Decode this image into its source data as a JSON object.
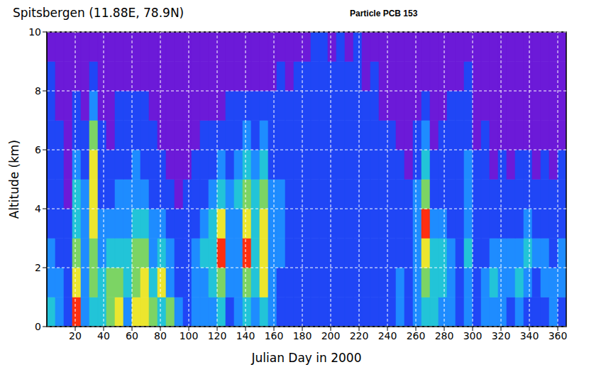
{
  "chart_data": {
    "type": "heatmap",
    "title": "Spitsbergen (11.88E, 78.9N)",
    "subtitle": "Particle PCB 153",
    "x_label": "Julian Day in 2000",
    "y_label": "Altitude (km)",
    "xlim": [
      0,
      366
    ],
    "ylim": [
      0,
      10
    ],
    "xticks": [
      20,
      40,
      60,
      80,
      100,
      120,
      140,
      160,
      180,
      200,
      220,
      240,
      260,
      280,
      300,
      320,
      340,
      360
    ],
    "yticks": [
      0,
      2,
      4,
      6,
      8,
      10
    ],
    "grid": true,
    "levels": [
      0,
      1,
      2,
      3,
      4,
      5,
      6
    ],
    "colors": [
      "#6c1ad8",
      "#2046f6",
      "#1e8cff",
      "#22c4d8",
      "#7cd464",
      "#ece62e",
      "#ff2e10"
    ],
    "x_bins": [
      0,
      6,
      12,
      18,
      24,
      30,
      36,
      42,
      48,
      54,
      60,
      66,
      72,
      78,
      84,
      90,
      96,
      102,
      108,
      114,
      120,
      126,
      132,
      138,
      144,
      150,
      156,
      162,
      168,
      174,
      180,
      186,
      192,
      198,
      204,
      210,
      216,
      222,
      228,
      234,
      240,
      246,
      252,
      258,
      264,
      270,
      276,
      282,
      288,
      294,
      300,
      306,
      312,
      318,
      324,
      330,
      336,
      342,
      348,
      354,
      360,
      366
    ],
    "y_bins": [
      0,
      1,
      2,
      3,
      4,
      5,
      6,
      7,
      8,
      9,
      10
    ],
    "cells": [
      [
        3,
        2,
        2,
        1,
        1,
        1,
        1,
        1,
        1,
        0
      ],
      [
        2,
        2,
        1,
        1,
        1,
        1,
        1,
        0,
        0,
        0
      ],
      [
        1,
        1,
        1,
        1,
        0,
        0,
        0,
        0,
        0,
        0
      ],
      [
        6,
        5,
        4,
        3,
        3,
        2,
        1,
        1,
        0,
        0
      ],
      [
        2,
        2,
        2,
        2,
        2,
        1,
        1,
        0,
        0,
        0
      ],
      [
        3,
        4,
        4,
        5,
        5,
        5,
        4,
        2,
        1,
        0
      ],
      [
        3,
        3,
        2,
        2,
        1,
        1,
        1,
        0,
        0,
        0
      ],
      [
        4,
        4,
        3,
        2,
        1,
        1,
        0,
        0,
        0,
        0
      ],
      [
        5,
        4,
        3,
        2,
        2,
        1,
        1,
        1,
        0,
        0
      ],
      [
        2,
        3,
        3,
        2,
        2,
        1,
        1,
        1,
        0,
        0
      ],
      [
        5,
        4,
        4,
        3,
        2,
        2,
        1,
        1,
        0,
        0
      ],
      [
        5,
        5,
        4,
        3,
        2,
        1,
        1,
        1,
        0,
        0
      ],
      [
        4,
        3,
        2,
        2,
        1,
        1,
        1,
        0,
        0,
        0
      ],
      [
        3,
        5,
        3,
        2,
        1,
        1,
        0,
        0,
        0,
        0
      ],
      [
        4,
        2,
        2,
        1,
        1,
        0,
        0,
        0,
        0,
        0
      ],
      [
        2,
        1,
        1,
        1,
        0,
        0,
        0,
        0,
        0,
        0
      ],
      [
        1,
        1,
        1,
        1,
        1,
        0,
        0,
        0,
        0,
        0
      ],
      [
        2,
        2,
        2,
        1,
        1,
        1,
        0,
        0,
        0,
        0
      ],
      [
        2,
        2,
        3,
        2,
        1,
        1,
        1,
        0,
        0,
        0
      ],
      [
        2,
        3,
        3,
        3,
        2,
        1,
        1,
        0,
        0,
        0
      ],
      [
        3,
        4,
        6,
        5,
        3,
        2,
        1,
        0,
        0,
        0
      ],
      [
        1,
        2,
        2,
        2,
        2,
        1,
        1,
        1,
        0,
        0
      ],
      [
        2,
        2,
        2,
        2,
        3,
        2,
        1,
        1,
        0,
        0
      ],
      [
        3,
        4,
        6,
        5,
        4,
        3,
        2,
        1,
        0,
        0
      ],
      [
        2,
        3,
        3,
        3,
        3,
        2,
        1,
        1,
        0,
        0
      ],
      [
        3,
        5,
        5,
        5,
        4,
        3,
        2,
        1,
        0,
        0
      ],
      [
        2,
        2,
        2,
        2,
        2,
        1,
        1,
        1,
        0,
        0
      ],
      [
        1,
        1,
        2,
        2,
        2,
        1,
        1,
        1,
        1,
        0
      ],
      [
        1,
        1,
        1,
        1,
        1,
        1,
        1,
        1,
        0,
        0
      ],
      [
        1,
        1,
        1,
        1,
        1,
        1,
        1,
        1,
        1,
        0
      ],
      [
        1,
        1,
        1,
        1,
        1,
        1,
        1,
        1,
        1,
        0
      ],
      [
        1,
        1,
        1,
        1,
        1,
        1,
        1,
        1,
        1,
        1
      ],
      [
        1,
        1,
        1,
        1,
        1,
        1,
        1,
        1,
        1,
        1
      ],
      [
        1,
        1,
        1,
        1,
        1,
        1,
        1,
        1,
        1,
        0
      ],
      [
        1,
        1,
        1,
        1,
        1,
        1,
        1,
        1,
        1,
        1
      ],
      [
        1,
        1,
        1,
        1,
        1,
        1,
        1,
        1,
        1,
        0
      ],
      [
        1,
        1,
        1,
        1,
        1,
        1,
        1,
        1,
        1,
        1
      ],
      [
        1,
        1,
        1,
        1,
        1,
        1,
        1,
        1,
        0,
        0
      ],
      [
        1,
        1,
        1,
        1,
        1,
        1,
        1,
        1,
        1,
        0
      ],
      [
        1,
        1,
        1,
        1,
        1,
        1,
        1,
        0,
        0,
        0
      ],
      [
        1,
        1,
        1,
        1,
        1,
        1,
        1,
        0,
        0,
        0
      ],
      [
        2,
        2,
        1,
        1,
        1,
        1,
        0,
        0,
        0,
        0
      ],
      [
        1,
        1,
        1,
        1,
        1,
        0,
        0,
        0,
        0,
        0
      ],
      [
        2,
        2,
        2,
        2,
        2,
        1,
        1,
        0,
        0,
        0
      ],
      [
        3,
        4,
        5,
        6,
        4,
        3,
        2,
        1,
        0,
        0
      ],
      [
        3,
        3,
        3,
        2,
        1,
        1,
        0,
        0,
        0,
        0
      ],
      [
        2,
        3,
        3,
        2,
        1,
        1,
        1,
        0,
        0,
        0
      ],
      [
        2,
        2,
        2,
        1,
        1,
        1,
        1,
        1,
        0,
        0
      ],
      [
        1,
        1,
        1,
        1,
        1,
        1,
        1,
        1,
        0,
        0
      ],
      [
        2,
        2,
        3,
        2,
        2,
        2,
        1,
        1,
        1,
        0
      ],
      [
        1,
        1,
        1,
        1,
        1,
        1,
        0,
        0,
        0,
        0
      ],
      [
        2,
        2,
        1,
        1,
        1,
        1,
        1,
        0,
        0,
        0
      ],
      [
        2,
        3,
        2,
        1,
        1,
        0,
        0,
        0,
        0,
        0
      ],
      [
        2,
        2,
        2,
        1,
        1,
        1,
        0,
        0,
        0,
        0
      ],
      [
        1,
        2,
        2,
        1,
        1,
        0,
        0,
        0,
        0,
        0
      ],
      [
        2,
        3,
        2,
        1,
        1,
        1,
        0,
        0,
        0,
        0
      ],
      [
        1,
        2,
        3,
        2,
        1,
        1,
        0,
        0,
        0,
        0
      ],
      [
        1,
        1,
        2,
        1,
        1,
        0,
        0,
        0,
        0,
        0
      ],
      [
        1,
        2,
        2,
        1,
        1,
        1,
        0,
        0,
        0,
        0
      ],
      [
        2,
        2,
        1,
        1,
        1,
        0,
        0,
        0,
        0,
        0
      ],
      [
        1,
        2,
        2,
        1,
        1,
        1,
        0,
        0,
        0,
        0
      ]
    ]
  }
}
